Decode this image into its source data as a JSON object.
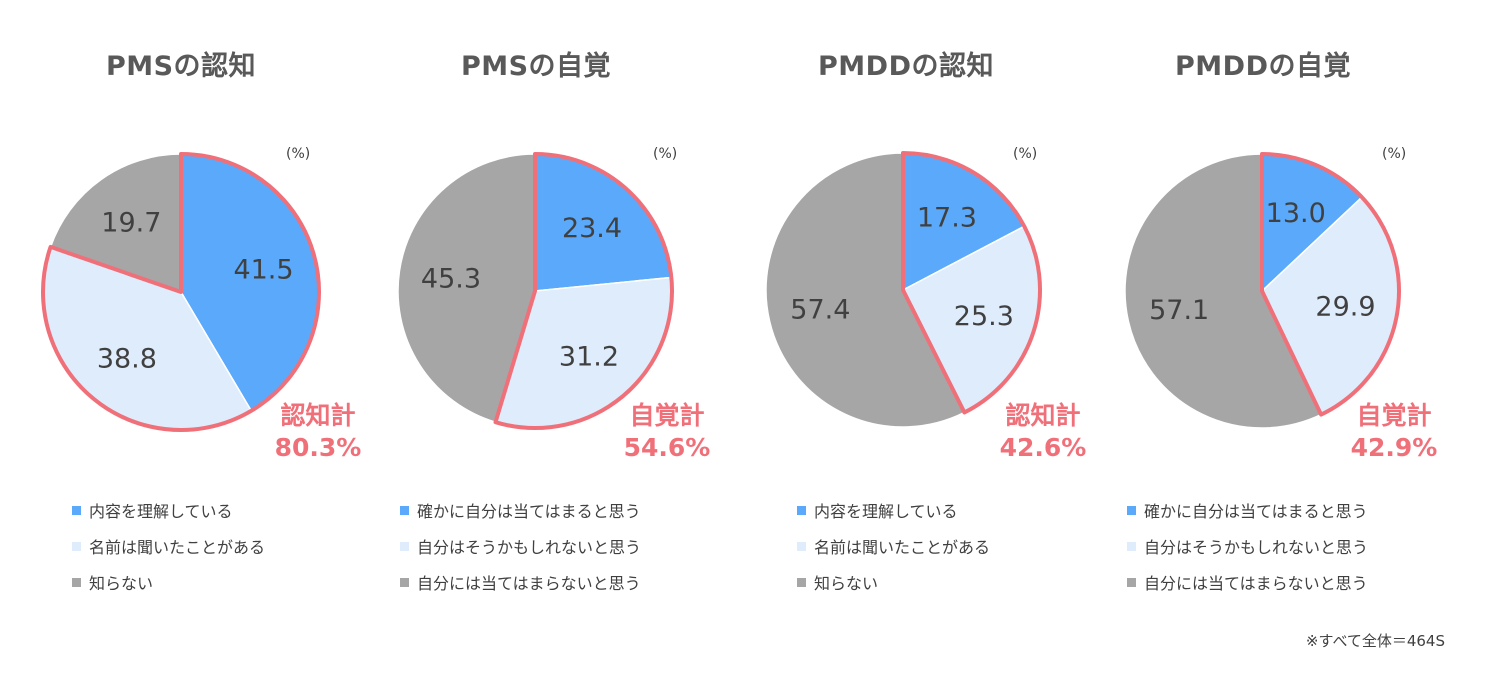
{
  "colors": {
    "aware": "#5aa9fa",
    "heard": "#dfecfb",
    "none": "#a6a6a6",
    "highlight": "#f0707a"
  },
  "chart_data": [
    {
      "type": "pie",
      "title": "PMSの認知",
      "unit": "(%)",
      "slices": [
        {
          "label": "内容を理解している",
          "value": 41.5
        },
        {
          "label": "名前は聞いたことがある",
          "value": 38.8
        },
        {
          "label": "知らない",
          "value": 19.7
        }
      ],
      "highlight_count": 2,
      "total_label": "認知計",
      "total_value": "80.3%"
    },
    {
      "type": "pie",
      "title": "PMSの自覚",
      "unit": "(%)",
      "slices": [
        {
          "label": "確かに自分は当てはまると思う",
          "value": 23.4
        },
        {
          "label": "自分はそうかもしれないと思う",
          "value": 31.2
        },
        {
          "label": "自分には当てはまらないと思う",
          "value": 45.3
        }
      ],
      "highlight_count": 2,
      "total_label": "自覚計",
      "total_value": "54.6%"
    },
    {
      "type": "pie",
      "title": "PMDDの認知",
      "unit": "(%)",
      "slices": [
        {
          "label": "内容を理解している",
          "value": 17.3
        },
        {
          "label": "名前は聞いたことがある",
          "value": 25.3
        },
        {
          "label": "知らない",
          "value": 57.4
        }
      ],
      "highlight_count": 2,
      "total_label": "認知計",
      "total_value": "42.6%"
    },
    {
      "type": "pie",
      "title": "PMDDの自覚",
      "unit": "(%)",
      "slices": [
        {
          "label": "確かに自分は当てはまると思う",
          "value": 13.0
        },
        {
          "label": "自分はそうかもしれないと思う",
          "value": 29.9
        },
        {
          "label": "自分には当てはまらないと思う",
          "value": 57.1
        }
      ],
      "highlight_count": 2,
      "total_label": "自覚計",
      "total_value": "42.9%"
    }
  ],
  "footnote": "※すべて全体＝464S"
}
